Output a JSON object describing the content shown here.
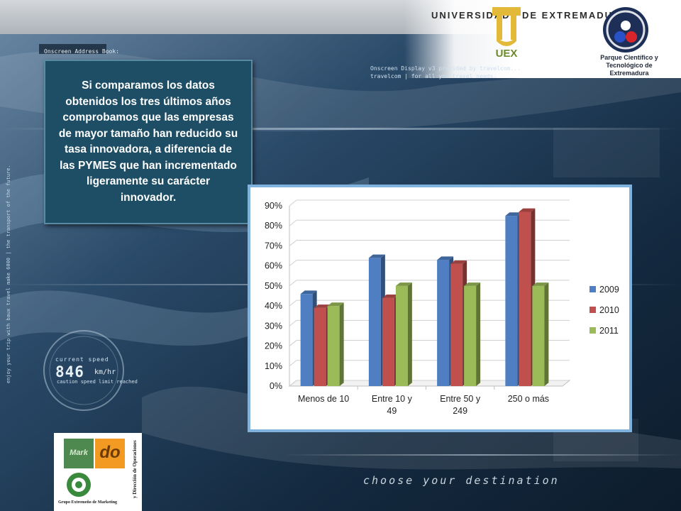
{
  "header": {
    "university_left": "UNIVERSIDAD",
    "university_right": "DE EXTREMADURA",
    "uex_mark": "UEX",
    "parque_name": "Parque Científico y Tecnológico de Extremadura"
  },
  "hud": {
    "address_book": "Onscreen Address Book:",
    "display_line1": "Onscreen Display v3 provided by travelcom...",
    "display_line2": "travelcom | for all you travel needs.",
    "speed_label": "current speed",
    "speed_value": "846",
    "speed_unit": "km/hr",
    "caution": "caution speed limit reached",
    "vertical_text": "enjoy your trip with baux travel make 6000 | the transport of the future.",
    "destination": "choose your destination"
  },
  "text_box": {
    "paragraph": "Si comparamos los datos obtenidos los tres últimos años comprobamos que  las empresas de mayor tamaño han reducido su tasa innovadora, a diferencia de las PYMES que han incrementado ligeramente su carácter innovador."
  },
  "logos": {
    "mark_text": "Mark",
    "do_text": "do",
    "caption": "Grupo Extremeño de Marketing",
    "vertical": "y Dirección de Operaciones"
  },
  "chart_data": {
    "type": "bar",
    "style": "3d-clustered-column",
    "categories": [
      "Menos de 10",
      "Entre 10 y 49",
      "Entre 50 y 249",
      "250 o más"
    ],
    "category_lines": [
      [
        "Menos de 10"
      ],
      [
        "Entre 10 y",
        "49"
      ],
      [
        "Entre 50 y",
        "249"
      ],
      [
        "250 o más"
      ]
    ],
    "series": [
      {
        "name": "2009",
        "color": "#4f7fc2",
        "values": [
          46,
          64,
          63,
          85
        ]
      },
      {
        "name": "2010",
        "color": "#c0504d",
        "values": [
          39,
          44,
          61,
          87
        ]
      },
      {
        "name": "2011",
        "color": "#9bbb59",
        "values": [
          40,
          50,
          50,
          50
        ]
      }
    ],
    "ylim": [
      0,
      90
    ],
    "yticks": [
      "0%",
      "10%",
      "20%",
      "30%",
      "40%",
      "50%",
      "60%",
      "70%",
      "80%",
      "90%"
    ],
    "grid": true,
    "legend": "right",
    "title": "",
    "xlabel": "",
    "ylabel": ""
  }
}
